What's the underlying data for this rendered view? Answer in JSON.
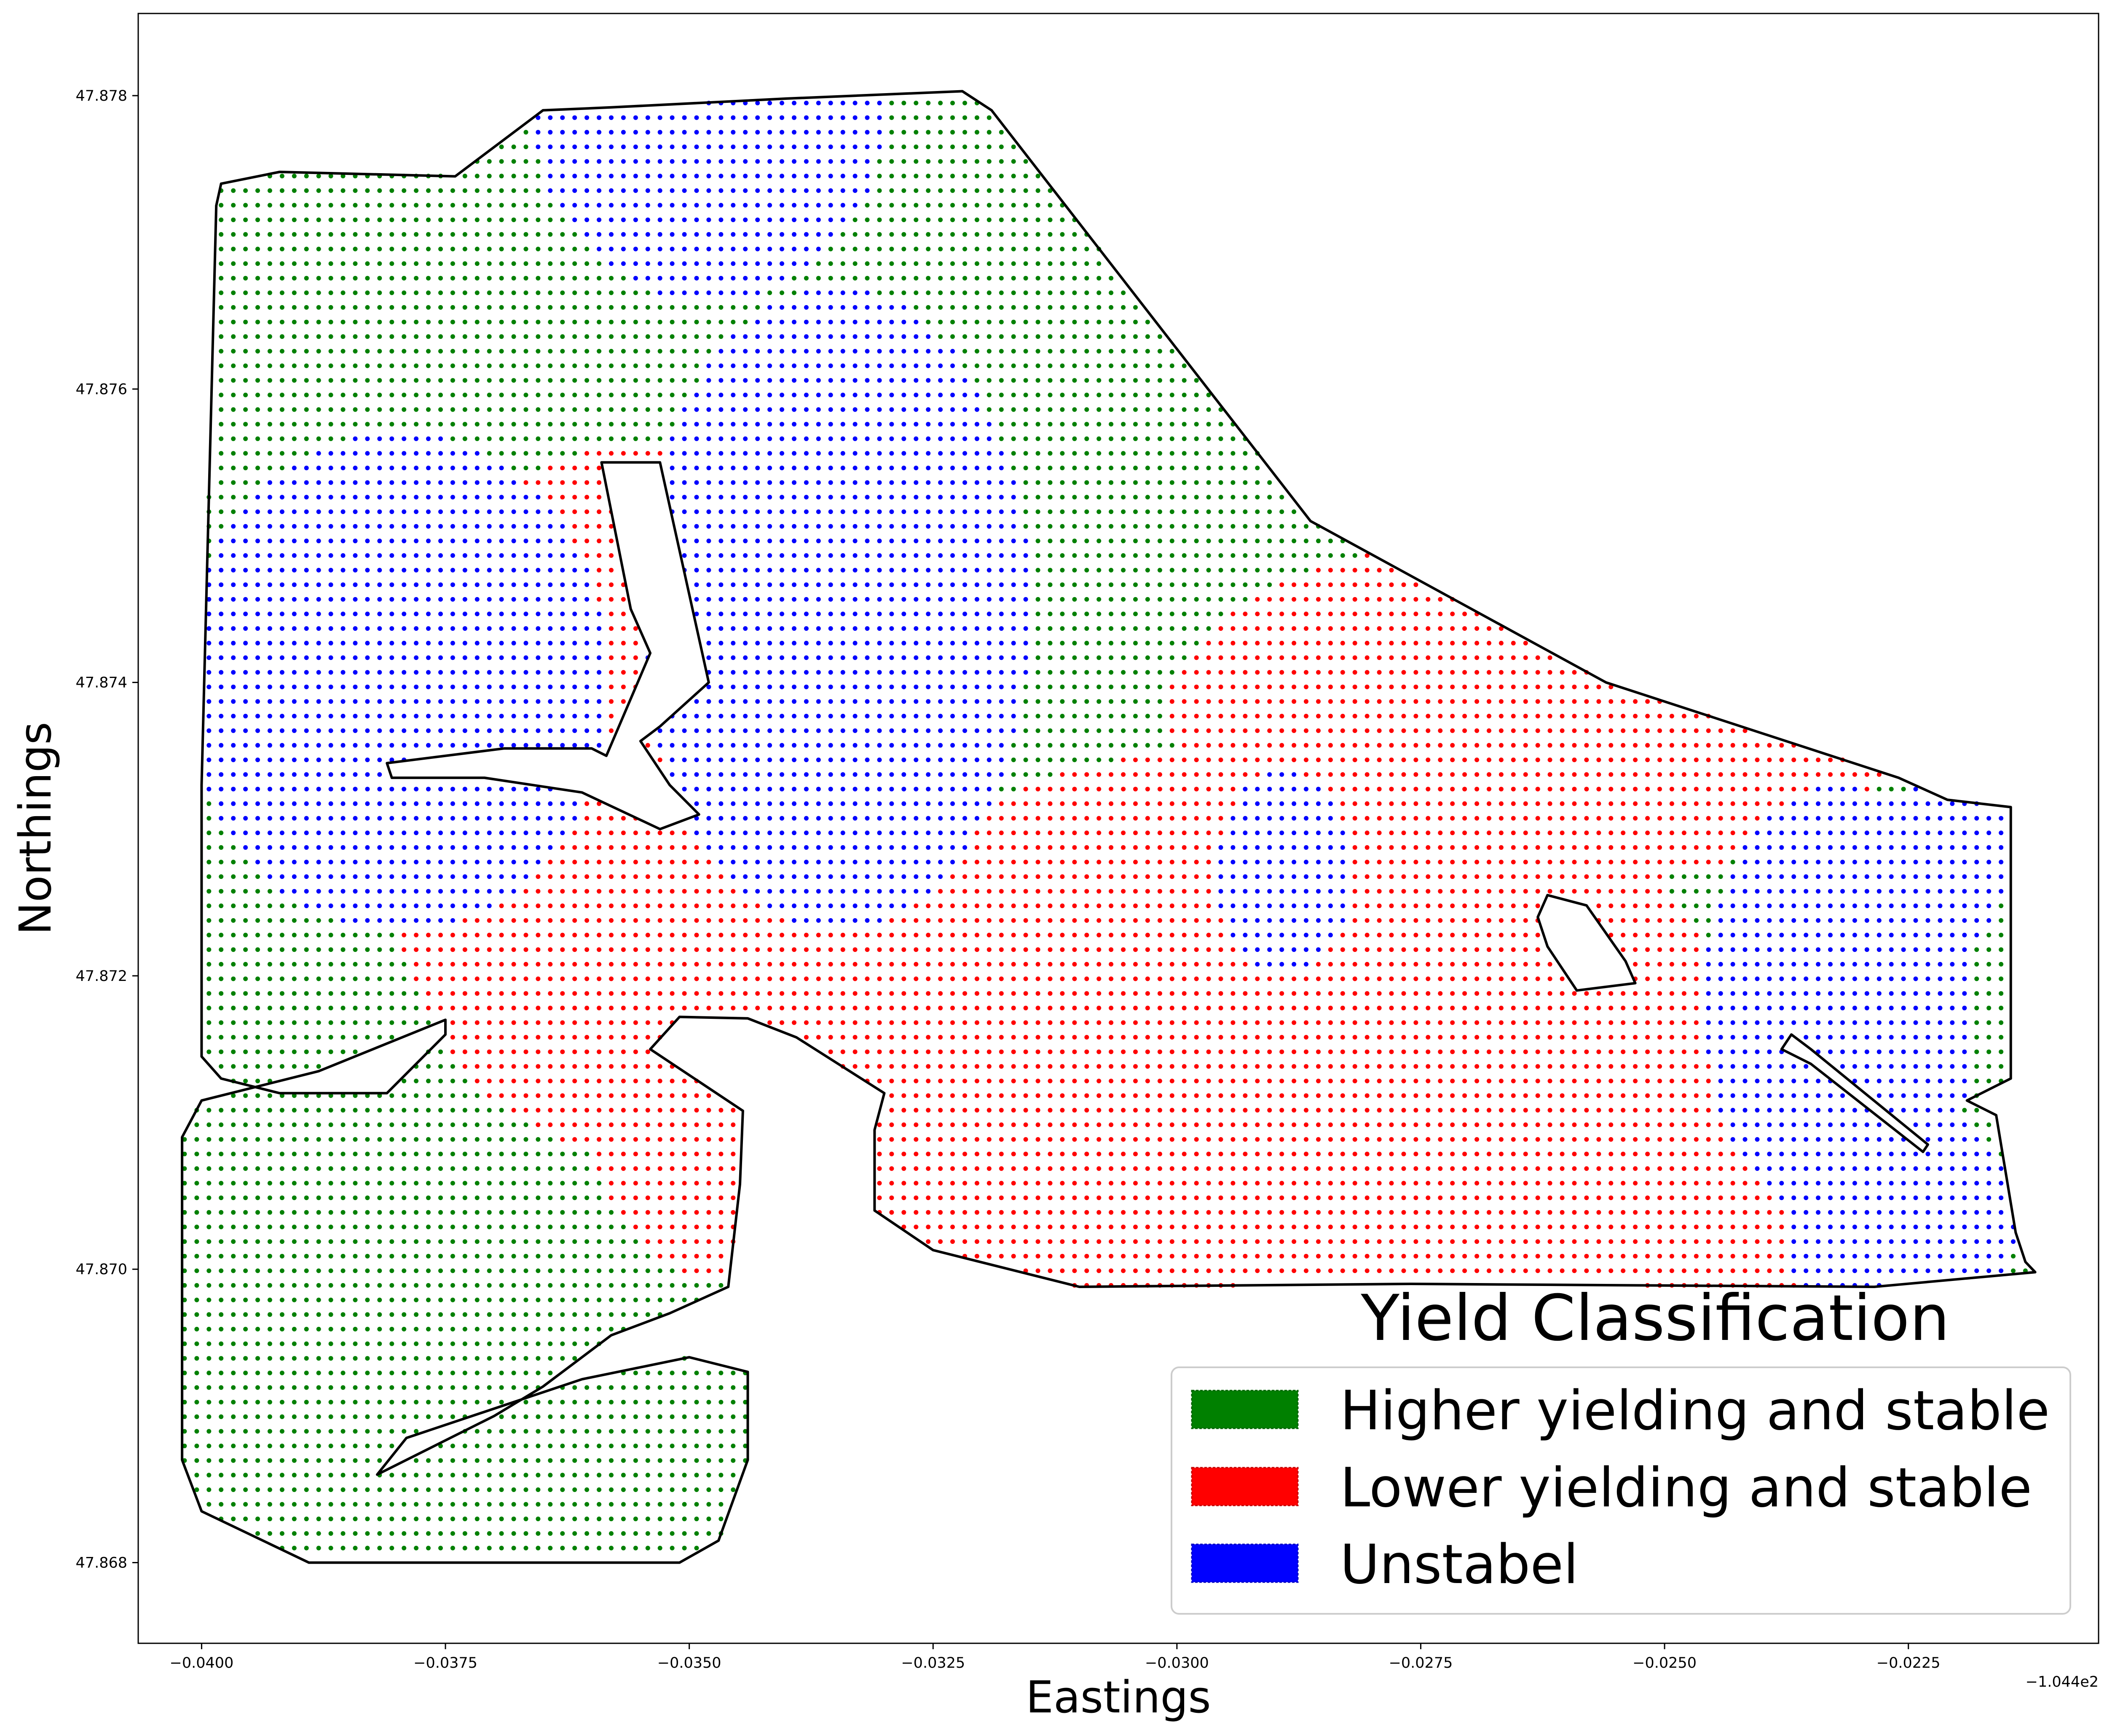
{
  "chart_data": {
    "type": "scatter",
    "title": "",
    "xlabel": "Eastings",
    "ylabel": "Northings",
    "x_offset_label": "−1.044e2",
    "xlim": [
      -0.04065,
      -0.02055
    ],
    "ylim": [
      47.86745,
      47.87856
    ],
    "xticks": [
      -0.04,
      -0.0375,
      -0.035,
      -0.0325,
      -0.03,
      -0.0275,
      -0.025,
      -0.0225
    ],
    "xtick_labels": [
      "−0.0400",
      "−0.0375",
      "−0.0350",
      "−0.0325",
      "−0.0300",
      "−0.0275",
      "−0.0250",
      "−0.0225"
    ],
    "yticks": [
      47.868,
      47.87,
      47.872,
      47.874,
      47.876,
      47.878
    ],
    "ytick_labels": [
      "47.868",
      "47.870",
      "47.872",
      "47.874",
      "47.876",
      "47.878"
    ],
    "grid": false,
    "legend": {
      "title": "Yield Classification",
      "placement": "lower-right",
      "entries": [
        {
          "label": "Higher yielding and stable",
          "color": "#008000"
        },
        {
          "label": "Lower yielding and stable",
          "color": "#ff0000"
        },
        {
          "label": "Unstabel",
          "color": "#0000ff"
        }
      ]
    },
    "series": [
      {
        "name": "Higher yielding and stable",
        "color": "#008000"
      },
      {
        "name": "Lower yielding and stable",
        "color": "#ff0000"
      },
      {
        "name": "Unstabel",
        "color": "#0000ff"
      }
    ],
    "grid_spacing": {
      "dx": 0.000125,
      "dy": 9.95e-05
    },
    "field_boundary": [
      [
        -0.03985,
        47.87725
      ],
      [
        -0.0398,
        47.8774
      ],
      [
        -0.0392,
        47.87748
      ],
      [
        -0.0374,
        47.87745
      ],
      [
        -0.0365,
        47.8779
      ],
      [
        -0.0358,
        47.87792
      ],
      [
        -0.034,
        47.87798
      ],
      [
        -0.0322,
        47.87803
      ],
      [
        -0.0319,
        47.8779
      ],
      [
        -0.02863,
        47.8751
      ],
      [
        -0.0256,
        47.874
      ],
      [
        -0.0226,
        47.87335
      ],
      [
        -0.0221,
        47.8732
      ],
      [
        -0.02145,
        47.87315
      ],
      [
        -0.02145,
        47.8713
      ],
      [
        -0.0219,
        47.87115
      ],
      [
        -0.0216,
        47.87105
      ],
      [
        -0.0214,
        47.87025
      ],
      [
        -0.0213,
        47.87005
      ],
      [
        -0.0212,
        47.86998
      ],
      [
        -0.02285,
        47.86988
      ],
      [
        -0.0276,
        47.8699
      ],
      [
        -0.031,
        47.86988
      ],
      [
        -0.0325,
        47.87013
      ],
      [
        -0.0331,
        47.8704
      ],
      [
        -0.0331,
        47.87095
      ],
      [
        -0.033,
        47.8712
      ],
      [
        -0.0339,
        47.87158
      ],
      [
        -0.0344,
        47.87171
      ],
      [
        -0.0351,
        47.87172
      ],
      [
        -0.0354,
        47.8715
      ],
      [
        -0.03445,
        47.87108
      ],
      [
        -0.03448,
        47.87058
      ],
      [
        -0.0346,
        47.86988
      ],
      [
        -0.0352,
        47.8697
      ],
      [
        -0.0358,
        47.86955
      ],
      [
        -0.0365,
        47.8692
      ],
      [
        -0.037,
        47.869
      ],
      [
        -0.0382,
        47.8686
      ],
      [
        -0.0379,
        47.86885
      ],
      [
        -0.0361,
        47.86925
      ],
      [
        -0.035,
        47.8694
      ],
      [
        -0.0344,
        47.8693
      ],
      [
        -0.0344,
        47.8687
      ],
      [
        -0.0347,
        47.86815
      ],
      [
        -0.0351,
        47.868
      ],
      [
        -0.0365,
        47.868
      ],
      [
        -0.0389,
        47.868
      ],
      [
        -0.04,
        47.86835
      ],
      [
        -0.0402,
        47.8687
      ],
      [
        -0.0402,
        47.8709
      ],
      [
        -0.04,
        47.87115
      ],
      [
        -0.0388,
        47.87135
      ],
      [
        -0.0375,
        47.8717
      ],
      [
        -0.0375,
        47.8716
      ],
      [
        -0.0381,
        47.8712
      ],
      [
        -0.0392,
        47.8712
      ],
      [
        -0.0398,
        47.8713
      ],
      [
        -0.04,
        47.87145
      ],
      [
        -0.04,
        47.8733
      ]
    ],
    "holes": [
      [
        [
          -0.0359,
          47.8755
        ],
        [
          -0.0356,
          47.8745
        ],
        [
          -0.0354,
          47.8742
        ],
        [
          -0.03585,
          47.8735
        ],
        [
          -0.036,
          47.87355
        ],
        [
          -0.0369,
          47.87355
        ],
        [
          -0.0381,
          47.87345
        ],
        [
          -0.03805,
          47.87335
        ],
        [
          -0.0371,
          47.87335
        ],
        [
          -0.0361,
          47.87325
        ],
        [
          -0.0353,
          47.873
        ],
        [
          -0.0349,
          47.8731
        ],
        [
          -0.0352,
          47.8733
        ],
        [
          -0.0355,
          47.8736
        ],
        [
          -0.0353,
          47.8737
        ],
        [
          -0.0348,
          47.874
        ],
        [
          -0.0353,
          47.8755
        ]
      ],
      [
        [
          -0.0262,
          47.87255
        ],
        [
          -0.0258,
          47.87248
        ],
        [
          -0.0254,
          47.8721
        ],
        [
          -0.0253,
          47.87195
        ],
        [
          -0.0259,
          47.8719
        ],
        [
          -0.0262,
          47.8722
        ],
        [
          -0.0263,
          47.8724
        ]
      ],
      [
        [
          -0.0237,
          47.8716
        ],
        [
          -0.0235,
          47.8715
        ],
        [
          -0.0223,
          47.87085
        ],
        [
          -0.02235,
          47.8708
        ],
        [
          -0.0235,
          47.8714
        ],
        [
          -0.0238,
          47.8715
        ]
      ]
    ],
    "class_regions": {
      "blue": [
        {
          "cx": -0.0348,
          "cy": 47.8779,
          "rx": 0.0018,
          "ry": 0.0013
        },
        {
          "cx": -0.0335,
          "cy": 47.8745,
          "rx": 0.002,
          "ry": 0.0022
        },
        {
          "cx": -0.038,
          "cy": 47.874,
          "rx": 0.0022,
          "ry": 0.0017
        },
        {
          "cx": -0.0289,
          "cy": 47.8727,
          "rx": 0.0007,
          "ry": 0.0007
        },
        {
          "cx": -0.0232,
          "cy": 47.8718,
          "rx": 0.0014,
          "ry": 0.0015
        },
        {
          "cx": -0.0226,
          "cy": 47.8703,
          "rx": 0.0012,
          "ry": 0.0009
        },
        {
          "cx": -0.0221,
          "cy": 47.8728,
          "rx": 0.0006,
          "ry": 0.0007
        }
      ],
      "red": [
        {
          "cx": -0.0357,
          "cy": 47.8732,
          "rx": 0.0025,
          "ry": 0.0024
        },
        {
          "cx": -0.0347,
          "cy": 47.8722,
          "rx": 0.0017,
          "ry": 0.0023
        },
        {
          "cx": -0.029,
          "cy": 47.8718,
          "rx": 0.0045,
          "ry": 0.0018
        },
        {
          "cx": -0.0263,
          "cy": 47.8738,
          "rx": 0.0038,
          "ry": 0.0012
        },
        {
          "cx": -0.0298,
          "cy": 47.8705,
          "rx": 0.005,
          "ry": 0.0014
        },
        {
          "cx": -0.025,
          "cy": 47.8705,
          "rx": 0.002,
          "ry": 0.0012
        }
      ]
    }
  }
}
